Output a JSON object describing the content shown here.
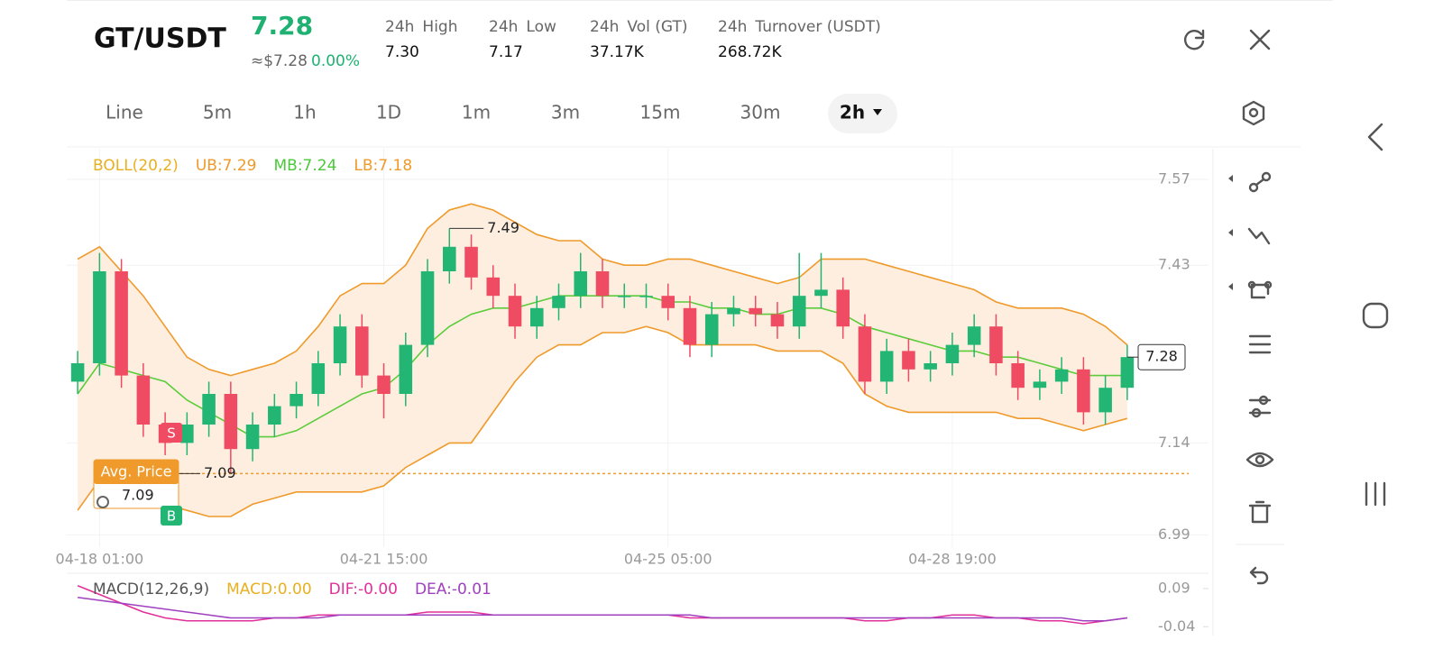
{
  "header": {
    "pair": "GT/USDT",
    "price": "7.28",
    "usd_price": "≈$7.28",
    "change": "0.00%",
    "stats": [
      {
        "period": "24h",
        "label": "High",
        "value": "7.30"
      },
      {
        "period": "24h",
        "label": "Low",
        "value": "7.17"
      },
      {
        "period": "24h",
        "label": "Vol (GT)",
        "value": "37.17K"
      },
      {
        "period": "24h",
        "label": "Turnover (USDT)",
        "value": "268.72K"
      }
    ]
  },
  "tabs": [
    "Line",
    "5m",
    "1h",
    "1D",
    "1m",
    "3m",
    "15m",
    "30m",
    "2h"
  ],
  "chart_data": [
    {
      "type": "candlestick",
      "legend": [
        {
          "text": "BOLL(20,2)",
          "color": "#e8b020"
        },
        {
          "text": "UB:7.29",
          "color": "#ef9a2a"
        },
        {
          "text": "MB:7.24",
          "color": "#4cc93a"
        },
        {
          "text": "LB:7.18",
          "color": "#ef9a2a"
        }
      ],
      "categories": [
        null,
        "04-18 01:00",
        null,
        null,
        null,
        null,
        null,
        null,
        null,
        null,
        null,
        null,
        null,
        null,
        "04-21 15:00",
        null,
        null,
        null,
        null,
        null,
        null,
        null,
        null,
        null,
        null,
        null,
        null,
        "04-25 05:00",
        null,
        null,
        null,
        null,
        null,
        null,
        null,
        null,
        null,
        null,
        null,
        null,
        "04-28 19:00",
        null,
        null,
        null,
        null,
        null,
        null,
        null,
        null
      ],
      "open": [
        7.24,
        7.27,
        7.42,
        7.25,
        7.17,
        7.14,
        7.17,
        7.22,
        7.13,
        7.17,
        7.2,
        7.22,
        7.27,
        7.33,
        7.25,
        7.22,
        7.3,
        7.42,
        7.46,
        7.41,
        7.38,
        7.33,
        7.36,
        7.38,
        7.42,
        7.38,
        7.38,
        7.38,
        7.36,
        7.3,
        7.35,
        7.36,
        7.35,
        7.33,
        7.38,
        7.39,
        7.33,
        7.24,
        7.29,
        7.26,
        7.27,
        7.3,
        7.33,
        7.27,
        7.23,
        7.24,
        7.26,
        7.19,
        7.23
      ],
      "high": [
        7.29,
        7.45,
        7.44,
        7.27,
        7.19,
        7.19,
        7.24,
        7.24,
        7.19,
        7.22,
        7.24,
        7.29,
        7.35,
        7.35,
        7.27,
        7.32,
        7.44,
        7.49,
        7.48,
        7.43,
        7.4,
        7.38,
        7.4,
        7.45,
        7.44,
        7.4,
        7.4,
        7.4,
        7.38,
        7.37,
        7.38,
        7.38,
        7.37,
        7.45,
        7.45,
        7.41,
        7.35,
        7.31,
        7.31,
        7.29,
        7.32,
        7.35,
        7.35,
        7.29,
        7.26,
        7.28,
        7.28,
        7.25,
        7.3
      ],
      "low": [
        7.22,
        7.25,
        7.23,
        7.15,
        7.12,
        7.12,
        7.15,
        7.09,
        7.11,
        7.15,
        7.18,
        7.2,
        7.25,
        7.23,
        7.18,
        7.2,
        7.28,
        7.4,
        7.39,
        7.36,
        7.31,
        7.31,
        7.34,
        7.36,
        7.36,
        7.36,
        7.36,
        7.34,
        7.28,
        7.28,
        7.33,
        7.33,
        7.31,
        7.31,
        7.36,
        7.31,
        7.22,
        7.22,
        7.24,
        7.24,
        7.25,
        7.28,
        7.25,
        7.21,
        7.21,
        7.22,
        7.17,
        7.17,
        7.21
      ],
      "close": [
        7.27,
        7.42,
        7.25,
        7.17,
        7.14,
        7.17,
        7.22,
        7.13,
        7.17,
        7.2,
        7.22,
        7.27,
        7.33,
        7.25,
        7.22,
        7.3,
        7.42,
        7.46,
        7.41,
        7.38,
        7.33,
        7.36,
        7.38,
        7.42,
        7.38,
        7.38,
        7.38,
        7.36,
        7.3,
        7.35,
        7.36,
        7.35,
        7.33,
        7.38,
        7.39,
        7.33,
        7.24,
        7.29,
        7.26,
        7.27,
        7.3,
        7.33,
        7.27,
        7.23,
        7.24,
        7.26,
        7.19,
        7.23,
        7.28
      ],
      "up_color": "#22b573",
      "down_color": "#ef4b62",
      "bands": [
        {
          "color": "#ef9a2a",
          "values": [
            7.44,
            7.46,
            7.42,
            7.38,
            7.33,
            7.28,
            7.26,
            7.25,
            7.26,
            7.27,
            7.29,
            7.33,
            7.38,
            7.4,
            7.4,
            7.43,
            7.49,
            7.52,
            7.53,
            7.52,
            7.5,
            7.48,
            7.47,
            7.47,
            7.44,
            7.43,
            7.43,
            7.44,
            7.44,
            7.43,
            7.42,
            7.41,
            7.4,
            7.41,
            7.44,
            7.44,
            7.44,
            7.43,
            7.42,
            7.41,
            7.4,
            7.39,
            7.37,
            7.36,
            7.36,
            7.36,
            7.35,
            7.33,
            7.3
          ]
        },
        {
          "color": "#5ccc3b",
          "values": [
            7.22,
            7.27,
            7.26,
            7.25,
            7.24,
            7.21,
            7.19,
            7.17,
            7.15,
            7.15,
            7.16,
            7.18,
            7.2,
            7.22,
            7.23,
            7.26,
            7.3,
            7.33,
            7.35,
            7.36,
            7.36,
            7.37,
            7.38,
            7.38,
            7.38,
            7.38,
            7.38,
            7.37,
            7.37,
            7.36,
            7.36,
            7.35,
            7.35,
            7.36,
            7.36,
            7.35,
            7.33,
            7.32,
            7.31,
            7.3,
            7.29,
            7.29,
            7.28,
            7.28,
            7.27,
            7.26,
            7.25,
            7.25,
            7.25
          ]
        },
        {
          "color": "#ef9a2a",
          "values": [
            7.03,
            7.08,
            7.09,
            7.06,
            7.04,
            7.03,
            7.02,
            7.02,
            7.04,
            7.05,
            7.06,
            7.06,
            7.06,
            7.06,
            7.07,
            7.1,
            7.12,
            7.14,
            7.14,
            7.19,
            7.24,
            7.28,
            7.3,
            7.3,
            7.32,
            7.32,
            7.33,
            7.32,
            7.3,
            7.3,
            7.3,
            7.3,
            7.29,
            7.29,
            7.29,
            7.27,
            7.22,
            7.2,
            7.19,
            7.19,
            7.19,
            7.19,
            7.19,
            7.18,
            7.18,
            7.17,
            7.16,
            7.17,
            7.18
          ]
        }
      ],
      "band_fill": "#fdeee0",
      "ylim": [
        6.97,
        7.62
      ],
      "yticks": [
        7.57,
        7.43,
        7.14,
        6.99
      ],
      "grid": true,
      "last_price": 7.28,
      "avg_price": 7.09,
      "avg_label": "Avg. Price",
      "signals": [
        "S",
        "B"
      ]
    },
    {
      "type": "line",
      "legend": [
        {
          "text": "MACD(12,26,9)",
          "color": "#555555"
        },
        {
          "text": "MACD:0.00",
          "color": "#e8b020"
        },
        {
          "text": "DIF:-0.00",
          "color": "#e0309a"
        },
        {
          "text": "DEA:-0.01",
          "color": "#a040c0"
        }
      ],
      "ylim": [
        -0.07,
        0.13
      ],
      "yticks": [
        0.09,
        -0.04
      ],
      "series": [
        {
          "color": "#e0309a",
          "values": [
            0.1,
            0.07,
            0.04,
            0.01,
            -0.01,
            -0.02,
            -0.02,
            -0.02,
            -0.02,
            -0.01,
            -0.01,
            0,
            0,
            0,
            0,
            0,
            0.01,
            0.01,
            0.01,
            0,
            0,
            0,
            0,
            0,
            0,
            0,
            0,
            0,
            -0.01,
            -0.01,
            -0.01,
            -0.01,
            -0.01,
            -0.01,
            -0.01,
            -0.01,
            -0.02,
            -0.02,
            -0.01,
            -0.01,
            0,
            0,
            -0.01,
            -0.01,
            -0.02,
            -0.02,
            -0.03,
            -0.02,
            -0.01
          ]
        },
        {
          "color": "#a040c0",
          "values": [
            0.06,
            0.05,
            0.04,
            0.03,
            0.02,
            0.01,
            0,
            -0.01,
            -0.01,
            -0.01,
            -0.01,
            -0.01,
            0,
            0,
            0,
            0,
            0,
            0,
            0,
            0,
            0,
            0,
            0,
            0,
            0,
            0,
            0,
            0,
            0,
            -0.01,
            -0.01,
            -0.01,
            -0.01,
            -0.01,
            -0.01,
            -0.01,
            -0.01,
            -0.01,
            -0.01,
            -0.01,
            -0.01,
            -0.01,
            -0.01,
            -0.01,
            -0.01,
            -0.01,
            -0.02,
            -0.02,
            -0.01
          ]
        }
      ]
    }
  ]
}
